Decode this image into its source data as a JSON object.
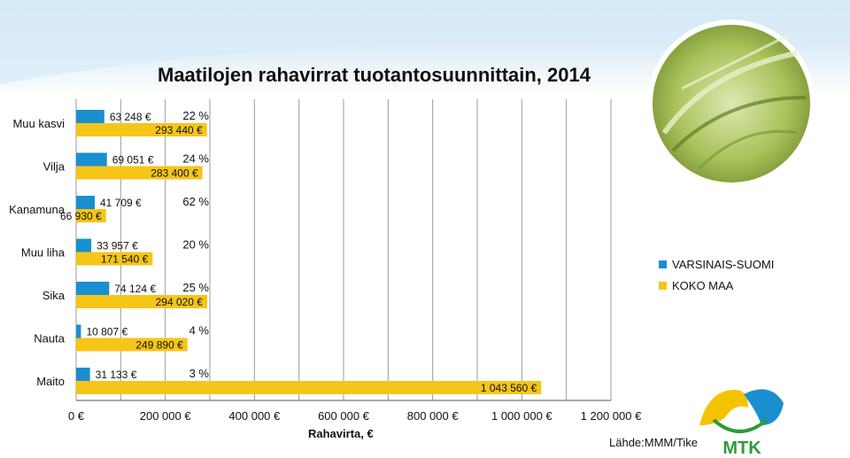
{
  "header": {
    "title": "Maatilojen rahavirrat tuotantosuunnittain, 2014"
  },
  "source": "Lähde:MMM/Tike",
  "logo": {
    "text": "MTK",
    "colors": [
      "#f5c400",
      "#1a8fd0",
      "#2e9a3a"
    ]
  },
  "colors": {
    "regional": "#1a8fd0",
    "national": "#f5c518",
    "band": "#cfe6f5",
    "grid": "#999999"
  },
  "chart_data": {
    "type": "bar",
    "title": "Maatilojen rahavirrat tuotantosuunnittain, 2014",
    "xlabel": "Rahavirta, €",
    "ylabel": "",
    "xlim": [
      0,
      1200000
    ],
    "xticks": [
      "0 €",
      "200 000 €",
      "400 000 €",
      "600 000 €",
      "800 000 €",
      "1 000 000 €",
      "1 200 000 €"
    ],
    "legend": "right",
    "categories": [
      "Muu kasvi",
      "Vilja",
      "Kanamuna",
      "Muu liha",
      "Sika",
      "Nauta",
      "Maito"
    ],
    "series": [
      {
        "name": "VARSINAIS-SUOMI",
        "values": [
          63248,
          69051,
          41709,
          33957,
          74124,
          10807,
          31133
        ],
        "labels": [
          "63 248 €",
          "69 051 €",
          "41 709 €",
          "33 957 €",
          "74 124 €",
          "10 807 €",
          "31 133 €"
        ]
      },
      {
        "name": "KOKO MAA",
        "values": [
          293440,
          283400,
          66930,
          171540,
          294020,
          249890,
          1043560
        ],
        "labels": [
          "293 440 €",
          "283 400 €",
          "66 930 €",
          "171 540 €",
          "294 020 €",
          "249 890 €",
          "1 043 560 €"
        ]
      }
    ],
    "percentages": [
      "22 %",
      "24 %",
      "62 %",
      "20 %",
      "25 %",
      "4 %",
      "3 %"
    ]
  }
}
